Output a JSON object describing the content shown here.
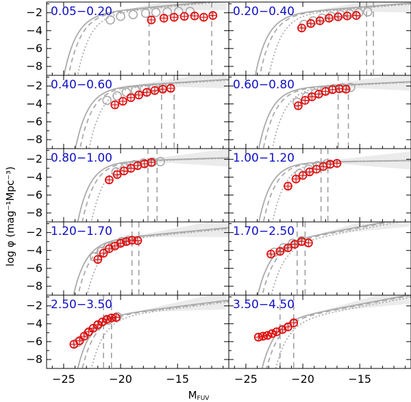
{
  "chart_data": {
    "type": "scatter",
    "title": "",
    "xlabel": "M",
    "xlabel_sub": "FUV",
    "ylabel": "log φ  (mag⁻¹Mpc⁻³)",
    "xlim": [
      -26.5,
      -10.5
    ],
    "ylim": [
      -9.0,
      -0.8
    ],
    "x_ticks": [
      -25,
      -20,
      -15
    ],
    "x_tick_labels": [
      "−25",
      "−20",
      "−15"
    ],
    "y_ticks": [
      -8,
      -6,
      -4,
      -2
    ],
    "y_tick_labels": [
      "−8",
      "−6",
      "−4",
      "−2"
    ],
    "grid": false,
    "colors": {
      "red_points": "#e01010",
      "gray_points": "#aaaaaa",
      "fit_line": "#aaaaaa",
      "range_label": "#1010c8"
    },
    "panels": [
      {
        "label": "0.05−0.20",
        "mstar": -22.0,
        "phistar": -1.9,
        "alpha": -1.3,
        "limits": [
          -17.5,
          -12.0
        ],
        "red": [
          [
            -17.3,
            -2.8
          ],
          [
            -16.2,
            -2.6
          ],
          [
            -15.3,
            -2.5
          ],
          [
            -14.4,
            -2.4
          ],
          [
            -13.5,
            -2.35
          ],
          [
            -12.7,
            -2.5
          ],
          [
            -11.9,
            -2.3
          ]
        ],
        "gray": [
          [
            -20.9,
            -2.8
          ],
          [
            -20.0,
            -2.4
          ],
          [
            -18.9,
            -2.2
          ],
          [
            -17.8,
            -2.05
          ],
          [
            -16.9,
            -1.95
          ],
          [
            -15.9,
            -1.9
          ],
          [
            -14.9,
            -1.85
          ],
          [
            -13.9,
            -1.85
          ]
        ]
      },
      {
        "label": "0.20−0.40",
        "mstar": -21.2,
        "phistar": -1.95,
        "alpha": -1.25,
        "limits": [
          -14.4,
          -13.8
        ],
        "red": [
          [
            -20.1,
            -3.7
          ],
          [
            -19.3,
            -3.2
          ],
          [
            -18.5,
            -2.9
          ],
          [
            -17.7,
            -2.6
          ],
          [
            -16.9,
            -2.45
          ],
          [
            -16.1,
            -2.35
          ],
          [
            -15.3,
            -2.3
          ]
        ],
        "gray": [
          [
            -19.9,
            -3.3
          ],
          [
            -19.1,
            -2.9
          ],
          [
            -18.3,
            -2.6
          ],
          [
            -17.5,
            -2.4
          ],
          [
            -16.7,
            -2.2
          ],
          [
            -15.9,
            -2.1
          ],
          [
            -15.1,
            -2.0
          ],
          [
            -14.3,
            -1.9
          ]
        ]
      },
      {
        "label": "0.40−0.60",
        "mstar": -21.0,
        "phistar": -2.05,
        "alpha": -1.2,
        "limits": [
          -16.4,
          -15.3
        ],
        "red": [
          [
            -20.5,
            -4.1
          ],
          [
            -19.8,
            -3.7
          ],
          [
            -19.1,
            -3.3
          ],
          [
            -18.4,
            -3.0
          ],
          [
            -17.7,
            -2.7
          ],
          [
            -17.0,
            -2.5
          ],
          [
            -16.3,
            -2.35
          ],
          [
            -15.6,
            -2.25
          ]
        ],
        "gray": [
          [
            -21.2,
            -3.6
          ],
          [
            -20.3,
            -3.1
          ],
          [
            -19.5,
            -2.7
          ],
          [
            -18.7,
            -2.5
          ],
          [
            -17.9,
            -2.3
          ],
          [
            -17.1,
            -2.2
          ],
          [
            -16.3,
            -2.15
          ]
        ]
      },
      {
        "label": "0.60−0.80",
        "mstar": -20.9,
        "phistar": -2.1,
        "alpha": -1.15,
        "limits": [
          -16.9,
          -16.0
        ],
        "red": [
          [
            -20.4,
            -4.2
          ],
          [
            -19.8,
            -3.6
          ],
          [
            -19.2,
            -3.2
          ],
          [
            -18.6,
            -2.9
          ],
          [
            -18.0,
            -2.6
          ],
          [
            -17.4,
            -2.4
          ],
          [
            -16.8,
            -2.3
          ],
          [
            -16.2,
            -2.35
          ]
        ],
        "gray": [
          [
            -20.5,
            -3.8
          ],
          [
            -19.7,
            -3.2
          ],
          [
            -18.9,
            -2.8
          ],
          [
            -18.1,
            -2.5
          ],
          [
            -17.3,
            -2.3
          ],
          [
            -16.5,
            -2.2
          ],
          [
            -15.8,
            -2.15
          ]
        ]
      },
      {
        "label": "0.80−1.00",
        "mstar": -20.8,
        "phistar": -2.2,
        "alpha": -1.1,
        "limits": [
          -17.6,
          -16.8
        ],
        "red": [
          [
            -21.0,
            -4.3
          ],
          [
            -20.3,
            -3.7
          ],
          [
            -19.7,
            -3.3
          ],
          [
            -19.1,
            -3.0
          ],
          [
            -18.5,
            -2.7
          ],
          [
            -17.9,
            -2.5
          ],
          [
            -17.3,
            -2.35
          ]
        ],
        "gray": [
          [
            -20.4,
            -3.4
          ],
          [
            -19.6,
            -2.9
          ],
          [
            -18.8,
            -2.6
          ],
          [
            -18.0,
            -2.4
          ],
          [
            -17.2,
            -2.3
          ],
          [
            -16.5,
            -2.25
          ]
        ]
      },
      {
        "label": "1.00−1.20",
        "mstar": -20.9,
        "phistar": -2.3,
        "alpha": -1.05,
        "limits": [
          -18.4,
          -17.8
        ],
        "red": [
          [
            -21.3,
            -5.0
          ],
          [
            -20.6,
            -4.2
          ],
          [
            -20.0,
            -3.8
          ],
          [
            -19.4,
            -3.4
          ],
          [
            -18.8,
            -3.1
          ],
          [
            -18.2,
            -2.8
          ],
          [
            -17.6,
            -2.55
          ],
          [
            -17.0,
            -2.45
          ]
        ],
        "gray": [
          [
            -20.3,
            -3.6
          ],
          [
            -19.5,
            -3.1
          ],
          [
            -18.7,
            -2.7
          ],
          [
            -17.9,
            -2.5
          ]
        ]
      },
      {
        "label": "1.20−1.70",
        "mstar": -21.3,
        "phistar": -2.7,
        "alpha": -1.3,
        "limits": [
          -19.0,
          -18.4
        ],
        "red": [
          [
            -22.0,
            -5.0
          ],
          [
            -21.5,
            -4.3
          ],
          [
            -21.0,
            -3.8
          ],
          [
            -20.5,
            -3.5
          ],
          [
            -20.0,
            -3.2
          ],
          [
            -19.5,
            -3.0
          ],
          [
            -19.0,
            -2.85
          ],
          [
            -18.5,
            -2.9
          ]
        ],
        "gray": [
          [
            -22.3,
            -4.7
          ],
          [
            -21.7,
            -4.1
          ],
          [
            -21.1,
            -3.6
          ],
          [
            -20.5,
            -3.3
          ],
          [
            -19.9,
            -3.0
          ],
          [
            -19.3,
            -2.85
          ]
        ]
      },
      {
        "label": "1.70−2.50",
        "mstar": -21.2,
        "phistar": -2.8,
        "alpha": -1.6,
        "limits": [
          -20.5,
          -19.8
        ],
        "red": [
          [
            -22.8,
            -4.4
          ],
          [
            -22.0,
            -4.1
          ],
          [
            -21.3,
            -3.7
          ],
          [
            -20.7,
            -3.3
          ],
          [
            -20.1,
            -3.0
          ],
          [
            -19.5,
            -3.15
          ]
        ],
        "gray": [
          [
            -22.5,
            -4.2
          ],
          [
            -21.7,
            -3.7
          ],
          [
            -20.9,
            -3.2
          ],
          [
            -20.1,
            -2.9
          ]
        ]
      },
      {
        "label": "2.50−3.50",
        "mstar": -21.0,
        "phistar": -3.0,
        "alpha": -1.4,
        "limits": [
          -21.5,
          -20.8
        ],
        "red": [
          [
            -24.1,
            -6.3
          ],
          [
            -23.6,
            -5.9
          ],
          [
            -23.2,
            -5.4
          ],
          [
            -22.8,
            -4.9
          ],
          [
            -22.4,
            -4.5
          ],
          [
            -22.0,
            -4.1
          ],
          [
            -21.6,
            -3.8
          ],
          [
            -21.2,
            -3.5
          ],
          [
            -20.8,
            -3.35
          ],
          [
            -20.4,
            -3.3
          ]
        ],
        "gray": [
          [
            -23.8,
            -6.1
          ],
          [
            -22.9,
            -5.1
          ],
          [
            -22.0,
            -4.2
          ],
          [
            -21.1,
            -3.6
          ],
          [
            -20.3,
            -3.2
          ]
        ]
      },
      {
        "label": "3.50−4.50",
        "mstar": -20.9,
        "phistar": -3.2,
        "alpha": -1.6,
        "limits": [
          -22.0,
          -20.8
        ],
        "red": [
          [
            -23.9,
            -5.5
          ],
          [
            -23.5,
            -5.4
          ],
          [
            -23.1,
            -5.3
          ],
          [
            -22.7,
            -5.1
          ],
          [
            -22.3,
            -4.9
          ],
          [
            -21.8,
            -4.65
          ],
          [
            -21.3,
            -4.35
          ],
          [
            -20.8,
            -3.9
          ]
        ],
        "gray": []
      }
    ]
  }
}
